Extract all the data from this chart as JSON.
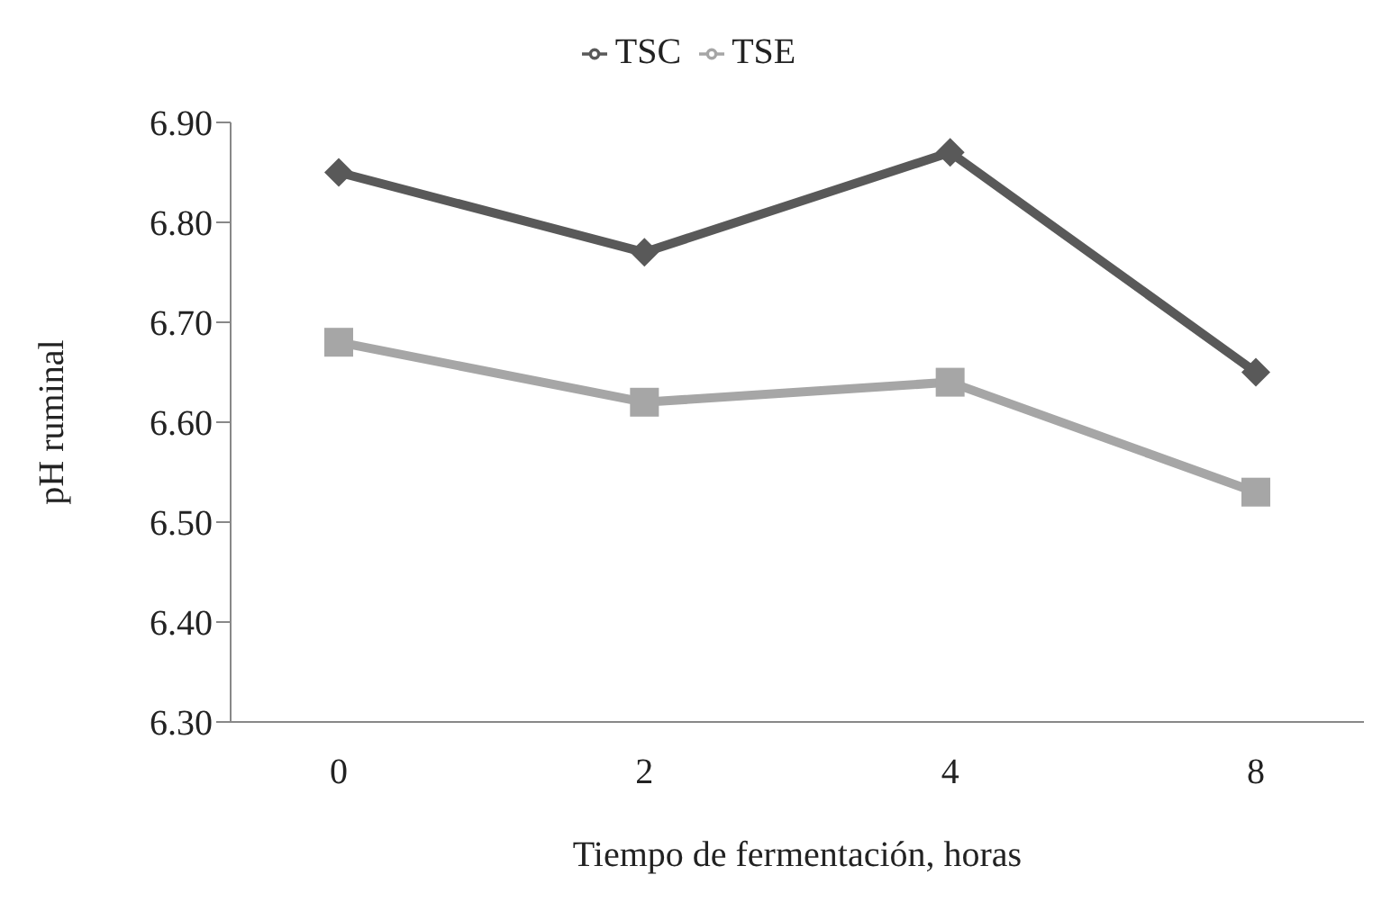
{
  "chart_data": {
    "type": "line",
    "xlabel": "Tiempo de fermentación, horas",
    "ylabel": "pH ruminal",
    "categories": [
      "0",
      "2",
      "4",
      "8"
    ],
    "series": [
      {
        "name": "TSC",
        "color": "#595959",
        "values": [
          6.85,
          6.77,
          6.87,
          6.65
        ],
        "marker": "diamond"
      },
      {
        "name": "TSE",
        "color": "#a6a6a6",
        "values": [
          6.68,
          6.62,
          6.64,
          6.53
        ],
        "marker": "square"
      }
    ],
    "ylim": [
      6.3,
      6.9
    ],
    "yticks": [
      {
        "value": 6.3,
        "label": "6.30"
      },
      {
        "value": 6.4,
        "label": "6.40"
      },
      {
        "value": 6.5,
        "label": "6.50"
      },
      {
        "value": 6.6,
        "label": "6.60"
      },
      {
        "value": 6.7,
        "label": "6.70"
      },
      {
        "value": 6.8,
        "label": "6.80"
      },
      {
        "value": 6.9,
        "label": "6.90"
      }
    ],
    "grid": false,
    "legend": "top"
  }
}
